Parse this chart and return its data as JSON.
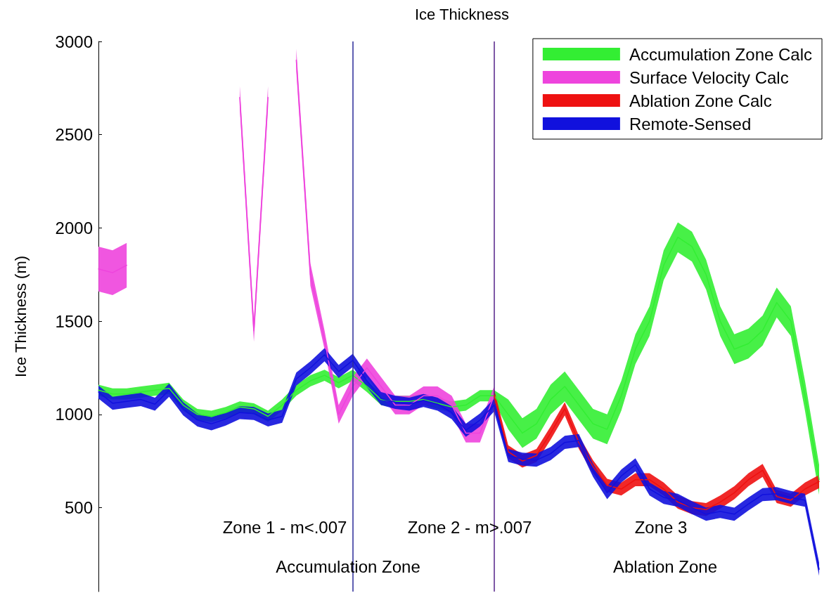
{
  "chart_data": {
    "type": "line",
    "title": "Ice Thickness",
    "ylabel": "Ice Thickness (m)",
    "categories": [
      null,
      null,
      null,
      null,
      null,
      null,
      null,
      null,
      null,
      null,
      null,
      null,
      null,
      null,
      null,
      null,
      null,
      null,
      null,
      null,
      null,
      null,
      null,
      null,
      null,
      null,
      null,
      null,
      null,
      null,
      null,
      null,
      null,
      null,
      null,
      null,
      null,
      null,
      null,
      null,
      null,
      null,
      null,
      null,
      null,
      null,
      null,
      null,
      null,
      null,
      null,
      null
    ],
    "ylim": [
      50,
      3000
    ],
    "yticks": [
      500,
      1000,
      1500,
      2000,
      2500,
      3000
    ],
    "tick_labels": "y",
    "legend": "top right",
    "marker": "none",
    "line_style": "solid",
    "series": [
      {
        "name": "Accumulation Zone Calc",
        "color": "#33ee33",
        "values": [
          1130,
          1110,
          1110,
          1120,
          1130,
          1140,
          1050,
          1000,
          990,
          1010,
          1040,
          1030,
          990,
          1050,
          1130,
          1180,
          1210,
          1170,
          1210,
          1150,
          1080,
          1070,
          1070,
          1080,
          1060,
          1040,
          1050,
          1100,
          1100,
          1000,
          900,
          950,
          1080,
          1150,
          1050,
          950,
          920,
          1100,
          1350,
          1500,
          1800,
          1950,
          1900,
          1750,
          1500,
          1350,
          1380,
          1450,
          1600,
          1500,
          1100,
          650
        ],
        "lower": [
          1100,
          1080,
          1080,
          1090,
          1100,
          1110,
          1020,
          970,
          960,
          980,
          1010,
          1000,
          960,
          1020,
          1100,
          1150,
          1180,
          1140,
          1180,
          1120,
          1050,
          1040,
          1040,
          1050,
          1030,
          1010,
          1020,
          1070,
          1070,
          920,
          820,
          870,
          1000,
          1070,
          970,
          870,
          840,
          1020,
          1270,
          1420,
          1720,
          1870,
          1820,
          1670,
          1420,
          1270,
          1300,
          1370,
          1520,
          1420,
          1020,
          570
        ],
        "upper": [
          1160,
          1140,
          1140,
          1150,
          1160,
          1170,
          1080,
          1030,
          1020,
          1040,
          1070,
          1060,
          1020,
          1080,
          1160,
          1210,
          1240,
          1200,
          1240,
          1180,
          1110,
          1100,
          1100,
          1110,
          1090,
          1070,
          1080,
          1130,
          1130,
          1080,
          980,
          1030,
          1160,
          1230,
          1130,
          1030,
          1000,
          1180,
          1430,
          1580,
          1880,
          2030,
          1980,
          1830,
          1580,
          1430,
          1460,
          1530,
          1680,
          1580,
          1180,
          730
        ]
      },
      {
        "name": "Surface Velocity Calc",
        "color": "#ee44dd",
        "values": [
          1780,
          1760,
          1800,
          null,
          null,
          null,
          null,
          null,
          null,
          null,
          2700,
          1450,
          2700,
          null,
          2900,
          1750,
          1400,
          1000,
          1150,
          1250,
          1150,
          1050,
          1050,
          1100,
          1100,
          1050,
          900,
          900,
          1100,
          null,
          null,
          null,
          null,
          null,
          null,
          null,
          null,
          null,
          null,
          null,
          null,
          null,
          null,
          null,
          null,
          null,
          null,
          null,
          null,
          null,
          null,
          null
        ],
        "lower": [
          1660,
          1640,
          1680,
          null,
          null,
          null,
          null,
          null,
          null,
          null,
          2640,
          1390,
          2640,
          null,
          2840,
          1690,
          1350,
          950,
          1100,
          1200,
          1100,
          1000,
          1000,
          1050,
          1050,
          1000,
          850,
          850,
          1050,
          null,
          null,
          null,
          null,
          null,
          null,
          null,
          null,
          null,
          null,
          null,
          null,
          null,
          null,
          null,
          null,
          null,
          null,
          null,
          null,
          null,
          null,
          null
        ],
        "upper": [
          1900,
          1880,
          1920,
          null,
          null,
          null,
          null,
          null,
          null,
          null,
          2760,
          1510,
          2760,
          null,
          2960,
          1810,
          1450,
          1050,
          1200,
          1300,
          1200,
          1100,
          1100,
          1150,
          1150,
          1100,
          950,
          950,
          1150,
          null,
          null,
          null,
          null,
          null,
          null,
          null,
          null,
          null,
          null,
          null,
          null,
          null,
          null,
          null,
          null,
          null,
          null,
          null,
          null,
          null,
          null,
          null
        ]
      },
      {
        "name": "Ablation Zone Calc",
        "color": "#ee1111",
        "values": [
          null,
          null,
          null,
          null,
          null,
          null,
          null,
          null,
          null,
          null,
          null,
          null,
          null,
          null,
          null,
          null,
          null,
          null,
          null,
          null,
          null,
          null,
          null,
          null,
          null,
          null,
          null,
          null,
          1100,
          800,
          750,
          780,
          900,
          1030,
          850,
          720,
          620,
          600,
          650,
          650,
          600,
          530,
          500,
          490,
          530,
          580,
          650,
          700,
          560,
          540,
          600,
          640
        ],
        "lower": [
          null,
          null,
          null,
          null,
          null,
          null,
          null,
          null,
          null,
          null,
          null,
          null,
          null,
          null,
          null,
          null,
          null,
          null,
          null,
          null,
          null,
          null,
          null,
          null,
          null,
          null,
          null,
          null,
          1065,
          765,
          715,
          745,
          865,
          995,
          815,
          685,
          585,
          565,
          615,
          615,
          565,
          495,
          465,
          455,
          495,
          545,
          615,
          665,
          525,
          505,
          565,
          605
        ],
        "upper": [
          null,
          null,
          null,
          null,
          null,
          null,
          null,
          null,
          null,
          null,
          null,
          null,
          null,
          null,
          null,
          null,
          null,
          null,
          null,
          null,
          null,
          null,
          null,
          null,
          null,
          null,
          null,
          null,
          1135,
          835,
          785,
          815,
          935,
          1065,
          885,
          755,
          655,
          635,
          685,
          685,
          635,
          565,
          535,
          525,
          565,
          615,
          685,
          735,
          595,
          575,
          635,
          675
        ]
      },
      {
        "name": "Remote-Sensed",
        "color": "#1111dd",
        "values": [
          1120,
          1060,
          1070,
          1080,
          1055,
          1130,
          1030,
          970,
          950,
          975,
          1010,
          1005,
          970,
          990,
          1190,
          1250,
          1320,
          1230,
          1290,
          1180,
          1085,
          1065,
          1055,
          1075,
          1055,
          1010,
          915,
          970,
          1050,
          780,
          760,
          755,
          790,
          850,
          860,
          700,
          580,
          670,
          730,
          600,
          555,
          540,
          500,
          465,
          480,
          465,
          520,
          570,
          575,
          555,
          540,
          170
        ],
        "lower": [
          1085,
          1025,
          1035,
          1045,
          1020,
          1095,
          995,
          935,
          915,
          940,
          975,
          970,
          935,
          955,
          1155,
          1215,
          1285,
          1195,
          1255,
          1145,
          1050,
          1030,
          1020,
          1040,
          1020,
          975,
          880,
          935,
          1015,
          745,
          725,
          720,
          755,
          815,
          825,
          665,
          545,
          635,
          695,
          565,
          520,
          505,
          465,
          430,
          445,
          430,
          485,
          535,
          540,
          520,
          505,
          135
        ],
        "upper": [
          1155,
          1095,
          1105,
          1115,
          1090,
          1165,
          1065,
          1005,
          985,
          1010,
          1045,
          1040,
          1005,
          1025,
          1225,
          1285,
          1355,
          1265,
          1325,
          1215,
          1120,
          1100,
          1090,
          1110,
          1090,
          1045,
          950,
          1005,
          1085,
          815,
          795,
          790,
          825,
          885,
          895,
          735,
          615,
          705,
          765,
          635,
          590,
          575,
          535,
          500,
          515,
          500,
          555,
          605,
          610,
          590,
          575,
          205
        ]
      }
    ],
    "annotations": [
      "Zone 1 - m<.007",
      "Zone 2 - m>.007",
      "Zone 3",
      "Accumulation Zone",
      "Ablation Zone"
    ]
  }
}
